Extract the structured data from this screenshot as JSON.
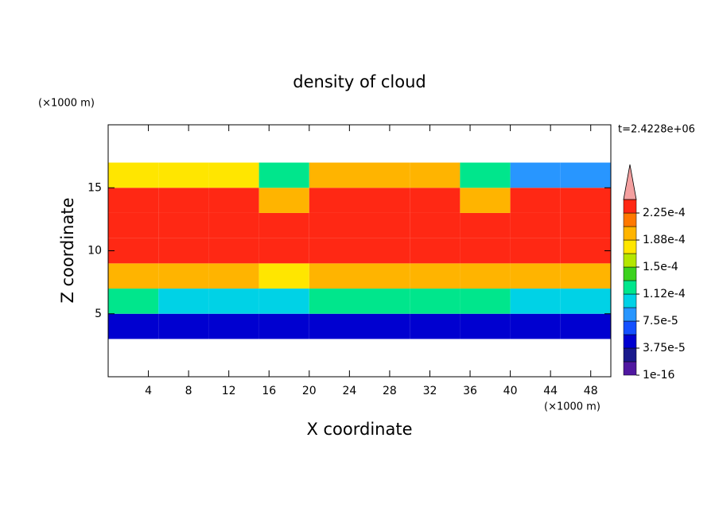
{
  "chart_data": {
    "type": "contour",
    "title": "density of cloud",
    "x_label": "X coordinate",
    "y_label": "Z coordinate",
    "x_unit": "(×1000 m)",
    "y_unit": "(×1000 m)",
    "time_label": "t=2.4228e+06",
    "xlim": [
      0,
      50
    ],
    "ylim": [
      0,
      20
    ],
    "xticks": [
      4,
      8,
      12,
      16,
      20,
      24,
      28,
      32,
      36,
      40,
      44,
      48
    ],
    "yticks": [
      5,
      10,
      15
    ],
    "x": [
      2.5,
      7.5,
      12.5,
      17.5,
      22.5,
      27.5,
      32.5,
      37.5,
      42.5,
      47.5
    ],
    "z": [
      4,
      6,
      8,
      10,
      12,
      14,
      16
    ],
    "values": [
      [
        5e-05,
        5e-05,
        5e-05,
        4e-05,
        5e-05,
        5e-05,
        5e-05,
        5e-05,
        4e-05,
        5e-05
      ],
      [
        0.00013,
        0.0001,
        0.0001,
        0.0001,
        0.00013,
        0.00013,
        0.00013,
        0.00013,
        0.0001,
        0.0001
      ],
      [
        0.0002,
        0.0002,
        0.0002,
        0.00018,
        0.0002,
        0.0002,
        0.0002,
        0.0002,
        0.00019,
        0.0002
      ],
      [
        0.00023,
        0.00023,
        0.00023,
        0.00023,
        0.00023,
        0.00023,
        0.00023,
        0.00023,
        0.00023,
        0.00023
      ],
      [
        0.000235,
        0.000235,
        0.000235,
        0.00023,
        0.000235,
        0.000235,
        0.000235,
        0.000235,
        0.00023,
        0.000235
      ],
      [
        0.00023,
        0.00023,
        0.00023,
        0.0002,
        0.00023,
        0.00023,
        0.00023,
        0.00019,
        0.00023,
        0.00023
      ],
      [
        0.00018,
        0.00018,
        0.00017,
        0.00012,
        0.00019,
        0.00019,
        0.0002,
        0.00012,
        9e-05,
        8e-05
      ]
    ],
    "colorbar": {
      "levels": [
        1e-16,
        1.875e-05,
        3.75e-05,
        5.625e-05,
        7.5e-05,
        9.375e-05,
        0.0001125,
        0.00013125,
        0.00015,
        0.00016875,
        0.0001875,
        0.00020625,
        0.000225,
        0.00024375
      ],
      "colors": [
        "#5018a0",
        "#1a1a8c",
        "#0000d0",
        "#1450ff",
        "#2896ff",
        "#00d2e6",
        "#00e68c",
        "#3cd21e",
        "#b4e600",
        "#ffe600",
        "#ffb400",
        "#ff7800",
        "#ff2814"
      ],
      "extend_color": "#f4a0a0",
      "ticks": [
        {
          "value": 1e-16,
          "label": "1e-16"
        },
        {
          "value": 3.75e-05,
          "label": "3.75e-5"
        },
        {
          "value": 7.5e-05,
          "label": "7.5e-5"
        },
        {
          "value": 0.0001125,
          "label": "1.12e-4"
        },
        {
          "value": 0.00015,
          "label": "1.5e-4"
        },
        {
          "value": 0.0001875,
          "label": "1.88e-4"
        },
        {
          "value": 0.000225,
          "label": "2.25e-4"
        }
      ]
    }
  }
}
